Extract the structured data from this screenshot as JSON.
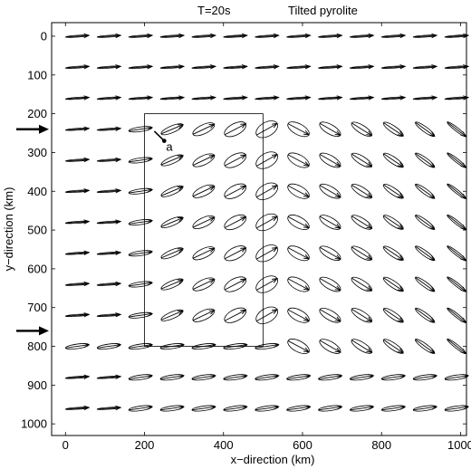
{
  "chart_data": {
    "type": "vector-field",
    "title_left": "T=20s",
    "title_right": "Tilted pyrolite",
    "xlabel": "x−direction (km)",
    "ylabel": "y−direction (km)",
    "xlim": [
      -35,
      1015
    ],
    "ylim": [
      1030,
      -35
    ],
    "y_reversed": true,
    "x_ticks": [
      0,
      200,
      400,
      600,
      800,
      1000
    ],
    "y_ticks": [
      0,
      100,
      200,
      300,
      400,
      500,
      600,
      700,
      800,
      900,
      1000
    ],
    "grid_x": [
      0,
      80,
      160,
      240,
      320,
      400,
      480,
      560,
      640,
      720,
      800,
      880,
      960
    ],
    "grid_y": [
      0,
      80,
      160,
      240,
      320,
      400,
      480,
      560,
      640,
      720,
      800,
      880,
      960
    ],
    "anomaly_box": {
      "x": [
        200,
        500
      ],
      "y": [
        200,
        800
      ]
    },
    "incidence_arrows_y": [
      240,
      760
    ],
    "annotation": {
      "text": "a",
      "x": 250,
      "y": 270,
      "x0": 225,
      "y0": 245
    },
    "grid": false,
    "legend": "none"
  }
}
